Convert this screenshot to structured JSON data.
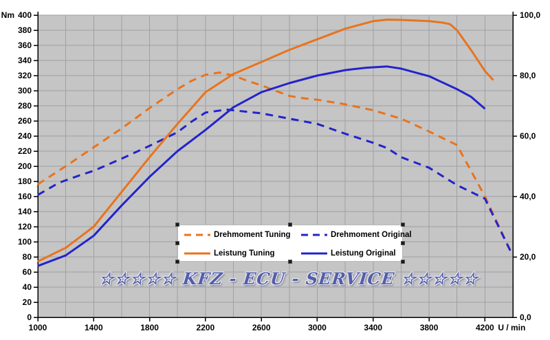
{
  "watermark": {
    "text": "☆☆☆☆☆ KFZ - ECU - SERVICE ☆☆☆☆☆"
  },
  "chart_data": {
    "type": "line",
    "title": "",
    "grid": true,
    "plot_bg": "#C5C5C5",
    "grid_color": "#9FA0A3",
    "axis_color": "#000000",
    "axes": {
      "x": {
        "unit_label": "U / min",
        "min": 1000,
        "max": 4400,
        "grid_step": 200,
        "label_step": 400,
        "tick_labels": [
          "1000",
          "1400",
          "1800",
          "2200",
          "2600",
          "3000",
          "3400",
          "3800",
          "4200"
        ]
      },
      "y_left": {
        "unit_label": "Nm",
        "min": 0,
        "max": 400,
        "step": 20,
        "tick_labels": [
          "400",
          "380",
          "360",
          "340",
          "320",
          "300",
          "280",
          "260",
          "240",
          "220",
          "200",
          "180",
          "160",
          "140",
          "120",
          "100",
          "80",
          "60",
          "40",
          "20",
          "0"
        ]
      },
      "y_right": {
        "min": 0,
        "max": 100,
        "step": 20,
        "tick_labels": [
          "100,0",
          "80,0",
          "60,0",
          "40,0",
          "20,0",
          "0,0"
        ]
      }
    },
    "series": [
      {
        "name": "Drehmoment Tuning",
        "axis": "left",
        "unit": "Nm",
        "color": "#E8731E",
        "style": "dashed",
        "points": [
          [
            1000,
            176
          ],
          [
            1200,
            200
          ],
          [
            1400,
            225
          ],
          [
            1600,
            250
          ],
          [
            1800,
            277
          ],
          [
            2000,
            302
          ],
          [
            2100,
            313
          ],
          [
            2200,
            321
          ],
          [
            2300,
            324
          ],
          [
            2400,
            320
          ],
          [
            2500,
            313
          ],
          [
            2600,
            307
          ],
          [
            2800,
            293
          ],
          [
            2900,
            290
          ],
          [
            3000,
            288
          ],
          [
            3100,
            285
          ],
          [
            3200,
            282
          ],
          [
            3400,
            274
          ],
          [
            3600,
            263
          ],
          [
            3800,
            246
          ],
          [
            4000,
            228
          ],
          [
            4200,
            160
          ],
          [
            4390,
            85
          ]
        ]
      },
      {
        "name": "Drehmoment Original",
        "axis": "left",
        "unit": "Nm",
        "color": "#2323CC",
        "style": "dashed",
        "points": [
          [
            1000,
            162
          ],
          [
            1150,
            178
          ],
          [
            1300,
            188
          ],
          [
            1400,
            194
          ],
          [
            1600,
            210
          ],
          [
            1800,
            227
          ],
          [
            2000,
            245
          ],
          [
            2100,
            259
          ],
          [
            2200,
            271
          ],
          [
            2350,
            275
          ],
          [
            2500,
            272
          ],
          [
            2600,
            270
          ],
          [
            2800,
            263
          ],
          [
            3000,
            256
          ],
          [
            3200,
            243
          ],
          [
            3400,
            231
          ],
          [
            3500,
            224
          ],
          [
            3600,
            212
          ],
          [
            3800,
            198
          ],
          [
            4000,
            175
          ],
          [
            4200,
            157
          ],
          [
            4390,
            85
          ]
        ]
      },
      {
        "name": "Leistung Tuning",
        "axis": "right",
        "unit": "kW",
        "color": "#E8731E",
        "style": "solid",
        "points": [
          [
            1000,
            18.5
          ],
          [
            1200,
            23
          ],
          [
            1400,
            30
          ],
          [
            1600,
            41.5
          ],
          [
            1800,
            53
          ],
          [
            2000,
            64
          ],
          [
            2200,
            74.5
          ],
          [
            2400,
            80.5
          ],
          [
            2600,
            84.5
          ],
          [
            2800,
            88.5
          ],
          [
            3000,
            92
          ],
          [
            3200,
            95.5
          ],
          [
            3400,
            98
          ],
          [
            3500,
            98.5
          ],
          [
            3600,
            98.4
          ],
          [
            3800,
            98
          ],
          [
            3900,
            97.5
          ],
          [
            3950,
            97
          ],
          [
            4000,
            95
          ],
          [
            4100,
            88.5
          ],
          [
            4200,
            81.5
          ],
          [
            4260,
            78.5
          ]
        ]
      },
      {
        "name": "Leistung Original",
        "axis": "right",
        "unit": "kW",
        "color": "#2323CC",
        "style": "solid",
        "points": [
          [
            1000,
            17
          ],
          [
            1200,
            20.5
          ],
          [
            1400,
            27
          ],
          [
            1600,
            37
          ],
          [
            1800,
            46.5
          ],
          [
            2000,
            55
          ],
          [
            2200,
            62
          ],
          [
            2400,
            69.5
          ],
          [
            2600,
            74.5
          ],
          [
            2800,
            77.5
          ],
          [
            3000,
            80
          ],
          [
            3200,
            81.8
          ],
          [
            3350,
            82.6
          ],
          [
            3500,
            83
          ],
          [
            3600,
            82.3
          ],
          [
            3800,
            79.8
          ],
          [
            4000,
            75.5
          ],
          [
            4100,
            73
          ],
          [
            4200,
            69
          ]
        ]
      }
    ],
    "legend": {
      "position": "floating-bottom-center",
      "selected": true,
      "rows": [
        [
          "Drehmoment Tuning",
          "Drehmoment Original"
        ],
        [
          "Leistung Tuning",
          "Leistung Original"
        ]
      ]
    }
  }
}
